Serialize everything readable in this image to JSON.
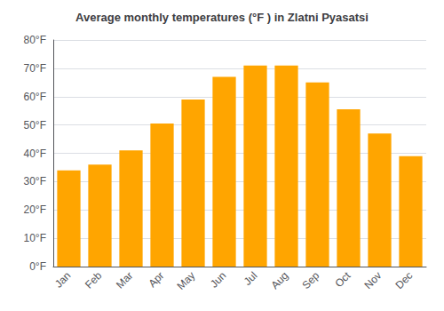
{
  "chart_data": {
    "type": "bar",
    "title": "Average monthly temperatures (°F ) in Zlatni Pyasatsi",
    "categories": [
      "Jan",
      "Feb",
      "Mar",
      "Apr",
      "May",
      "Jun",
      "Jul",
      "Aug",
      "Sep",
      "Oct",
      "Nov",
      "Dec"
    ],
    "values": [
      34,
      36,
      41,
      50.5,
      59,
      67,
      71,
      71,
      65,
      55.5,
      47,
      39
    ],
    "color": "#FFA500",
    "ylim": [
      0,
      80
    ],
    "yticks": [
      {
        "value": 0,
        "label": "0°F"
      },
      {
        "value": 10,
        "label": "10°F"
      },
      {
        "value": 20,
        "label": "20°F"
      },
      {
        "value": 30,
        "label": "30°F"
      },
      {
        "value": 40,
        "label": "40°F"
      },
      {
        "value": 50,
        "label": "50°F"
      },
      {
        "value": 60,
        "label": "60°F"
      },
      {
        "value": 70,
        "label": "70°F"
      },
      {
        "value": 80,
        "label": "80°F"
      }
    ],
    "grid": true
  }
}
